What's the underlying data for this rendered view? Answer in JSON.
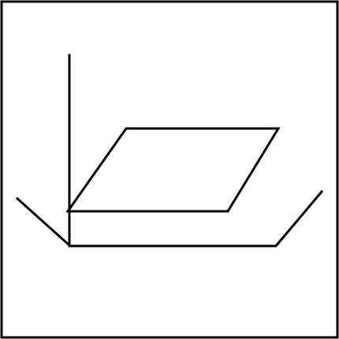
{
  "figure": {
    "background_color": "#ffffff",
    "stroke_color": "#000000",
    "elements": [
      "outer-frame",
      "vertical-axis-line",
      "parallelogram-plane",
      "base-polyline"
    ]
  }
}
